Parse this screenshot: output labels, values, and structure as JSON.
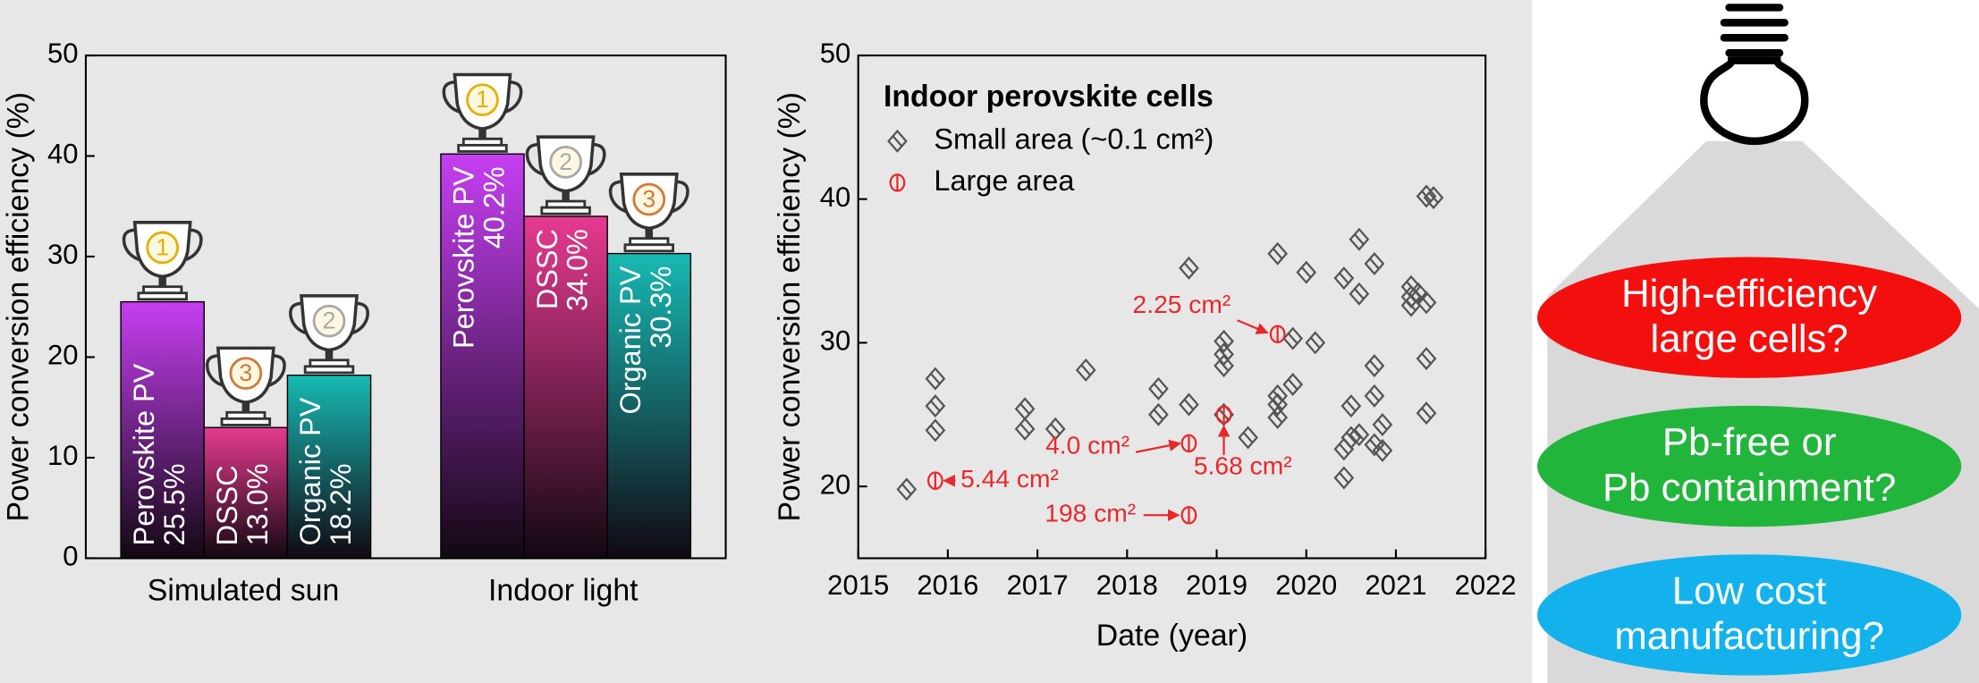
{
  "chart_data": [
    {
      "type": "bar",
      "categories": [
        "Simulated sun",
        "Indoor light"
      ],
      "y_label": "Power conversion efficiency (%)",
      "ylim": [
        0,
        50
      ],
      "yticks": [
        0,
        10,
        20,
        30,
        40,
        50
      ],
      "series": [
        {
          "name": "Perovskite PV",
          "color": "#c63ff2",
          "values": [
            25.5,
            40.2
          ],
          "value_labels": [
            "25.5%",
            "40.2%"
          ],
          "ranks": [
            1,
            1
          ]
        },
        {
          "name": "DSSC",
          "color": "#e63a90",
          "values": [
            13,
            34
          ],
          "value_labels": [
            "13.0%",
            "34.0%"
          ],
          "ranks": [
            3,
            2
          ]
        },
        {
          "name": "Organic PV",
          "color": "#17bab4",
          "values": [
            18.2,
            30.3
          ],
          "value_labels": [
            "18.2%",
            "30.3%"
          ],
          "ranks": [
            2,
            3
          ]
        }
      ]
    },
    {
      "type": "scatter",
      "legend_title": "Indoor perovskite cells",
      "x_label": "Date (year)",
      "y_label": "Power conversion efficiency (%)",
      "xlim": [
        2015,
        2022
      ],
      "xticks": [
        2015,
        2016,
        2017,
        2018,
        2019,
        2020,
        2021,
        2022
      ],
      "ylim": [
        15,
        50
      ],
      "yticks": [
        20,
        30,
        40,
        50
      ],
      "series": [
        {
          "name": "Small area (~0.1 cm²)",
          "color": "#555555",
          "marker": "diamond",
          "x": [
            2015.54,
            2015.86,
            2015.86,
            2015.86,
            2016.86,
            2016.86,
            2017.2,
            2017.54,
            2018.35,
            2018.35,
            2018.69,
            2018.69,
            2019.08,
            2019.08,
            2019.08,
            2019.08,
            2019.35,
            2019.68,
            2019.68,
            2019.68,
            2019.68,
            2019.85,
            2019.85,
            2020.0,
            2020.1,
            2020.42,
            2020.42,
            2020.42,
            2020.5,
            2020.5,
            2020.59,
            2020.59,
            2020.59,
            2020.76,
            2020.76,
            2020.76,
            2020.76,
            2020.85,
            2020.85,
            2021.17,
            2021.17,
            2021.17,
            2021.25,
            2021.34,
            2021.34,
            2021.34,
            2021.34,
            2021.42
          ],
          "y": [
            19.8,
            27.5,
            25.6,
            23.9,
            25.4,
            24.0,
            24.0,
            28.1,
            26.8,
            25.0,
            25.7,
            35.2,
            30.1,
            29.2,
            28.4,
            25.0,
            23.4,
            36.2,
            26.3,
            25.7,
            24.8,
            30.3,
            27.1,
            34.9,
            30.0,
            34.5,
            22.6,
            20.6,
            25.6,
            23.4,
            37.2,
            33.4,
            23.6,
            35.5,
            28.4,
            26.3,
            22.9,
            24.3,
            22.5,
            33.9,
            33.2,
            32.6,
            33.4,
            40.2,
            32.8,
            28.9,
            25.1,
            40.1
          ]
        },
        {
          "name": "Large area",
          "color": "#e8282b",
          "marker": "circle",
          "x": [
            2015.86,
            2018.69,
            2019.08,
            2019.68,
            2018.69
          ],
          "y": [
            20.4,
            23.0,
            25.0,
            30.6,
            18.0
          ],
          "point_labels": [
            "5.44 cm²",
            "4.0 cm²",
            "5.68 cm²",
            "2.25 cm²",
            "198 cm²"
          ]
        }
      ]
    }
  ],
  "panel_c": {
    "questions": [
      {
        "lines": [
          "High-efficiency",
          "large cells?"
        ],
        "color": "#f40f0f"
      },
      {
        "lines": [
          "Pb-free or",
          "Pb containment?"
        ],
        "color": "#22b53c"
      },
      {
        "lines": [
          "Low cost",
          "manufacturing?"
        ],
        "color": "#14b2ec"
      }
    ]
  }
}
